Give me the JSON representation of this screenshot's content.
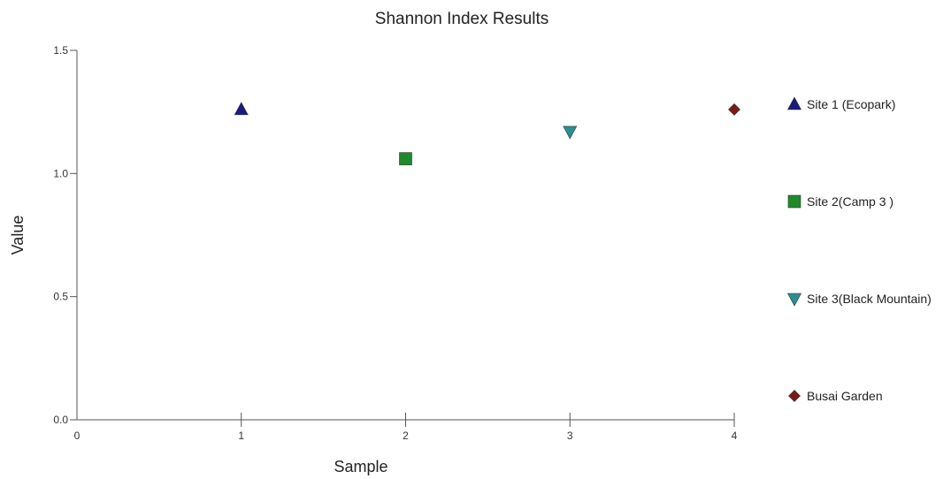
{
  "chart_data": {
    "type": "scatter",
    "title": "Shannon Index Results",
    "xlabel": "Sample",
    "ylabel": "Value",
    "xlim": [
      0,
      4
    ],
    "ylim": [
      0,
      1.5
    ],
    "x_ticks": [
      "0",
      "1",
      "2",
      "3",
      "4"
    ],
    "y_ticks": [
      "0.0",
      "0.5",
      "1.0",
      "1.5"
    ],
    "grid": false,
    "legend_position": "right",
    "series": [
      {
        "name": "Site 1 (Ecopark)",
        "marker": "triangle-up",
        "color": "#1a1a80",
        "x": [
          1
        ],
        "y": [
          1.26
        ]
      },
      {
        "name": "Site 2(Camp 3 )",
        "marker": "square",
        "color": "#1f8a2a",
        "x": [
          2
        ],
        "y": [
          1.06
        ]
      },
      {
        "name": "Site 3(Black Mountain)",
        "marker": "triangle-down",
        "color": "#2a8f8f",
        "x": [
          3
        ],
        "y": [
          1.17
        ]
      },
      {
        "name": "Busai Garden",
        "marker": "diamond",
        "color": "#7a1a1a",
        "x": [
          4
        ],
        "y": [
          1.26
        ]
      }
    ]
  }
}
